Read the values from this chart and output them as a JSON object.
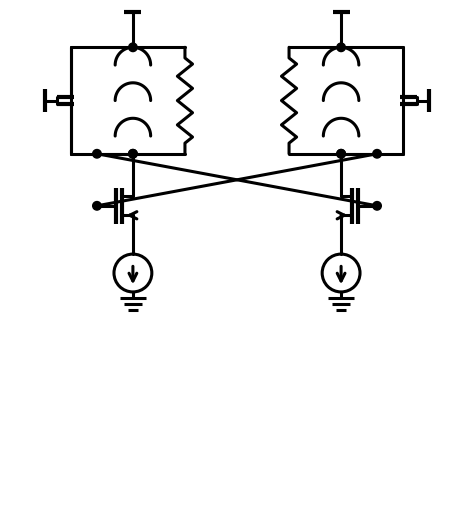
{
  "lw": 2.2,
  "lw_thick": 3.0,
  "color": "black",
  "bg": "white",
  "fig_width": 4.74,
  "fig_height": 5.11,
  "dpi": 100,
  "xlim": [
    0,
    10
  ],
  "ylim": [
    0,
    10.8
  ]
}
